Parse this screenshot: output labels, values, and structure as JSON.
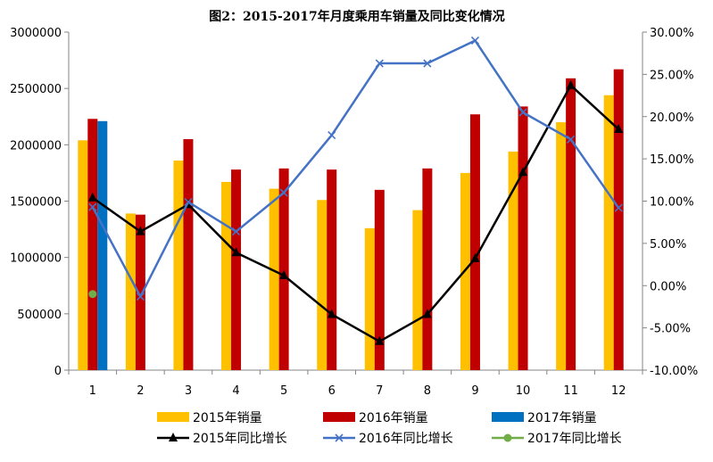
{
  "chart_data": {
    "type": "bar",
    "title": "图2：2015-2017年月度乘用车销量及同比变化情况",
    "categories": [
      "1",
      "2",
      "3",
      "4",
      "5",
      "6",
      "7",
      "8",
      "9",
      "10",
      "11",
      "12"
    ],
    "bar_series": [
      {
        "name": "2015年销量",
        "color": "#ffc000",
        "values": [
          2040000,
          1390000,
          1860000,
          1670000,
          1610000,
          1510000,
          1260000,
          1420000,
          1750000,
          1940000,
          2200000,
          2440000
        ]
      },
      {
        "name": "2016年销量",
        "color": "#c00000",
        "values": [
          2230000,
          1380000,
          2050000,
          1780000,
          1790000,
          1780000,
          1600000,
          1790000,
          2270000,
          2340000,
          2590000,
          2670000
        ]
      },
      {
        "name": "2017年销量",
        "color": "#0070c0",
        "values": [
          2210000,
          null,
          null,
          null,
          null,
          null,
          null,
          null,
          null,
          null,
          null,
          null
        ]
      }
    ],
    "line_series": [
      {
        "name": "2015年同比增长",
        "color": "#000000",
        "marker": "triangle",
        "values": [
          10.4,
          6.4,
          9.6,
          3.9,
          1.2,
          -3.4,
          -6.6,
          -3.4,
          3.2,
          13.4,
          23.7,
          18.5
        ]
      },
      {
        "name": "2016年同比增长",
        "color": "#4472c4",
        "marker": "x",
        "values": [
          9.3,
          -1.3,
          9.9,
          6.4,
          11.0,
          17.8,
          26.3,
          26.3,
          29.0,
          20.5,
          17.3,
          9.2
        ]
      },
      {
        "name": "2017年同比增长",
        "color": "#70ad47",
        "marker": "circle",
        "values": [
          -1.0,
          null,
          null,
          null,
          null,
          null,
          null,
          null,
          null,
          null,
          null,
          null
        ]
      }
    ],
    "y_left": {
      "min": 0,
      "max": 3000000,
      "step": 500000,
      "ticks": [
        "0",
        "500000",
        "1000000",
        "1500000",
        "2000000",
        "2500000",
        "3000000"
      ]
    },
    "y_right": {
      "min": -10,
      "max": 30,
      "step": 5,
      "ticks": [
        "-10.00%",
        "-5.00%",
        "0.00%",
        "5.00%",
        "10.00%",
        "15.00%",
        "20.00%",
        "25.00%",
        "30.00%"
      ]
    },
    "grid": false,
    "legend": "bottom"
  }
}
